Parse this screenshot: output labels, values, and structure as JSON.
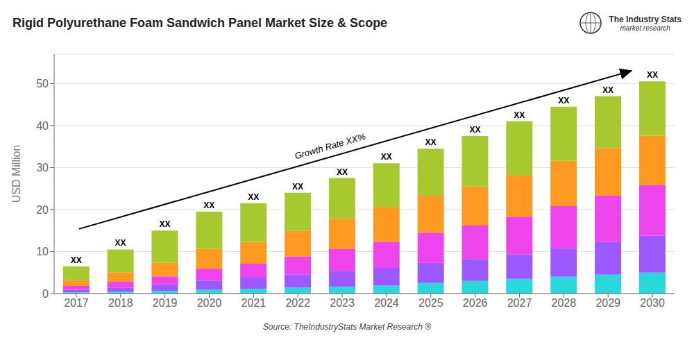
{
  "chart_data": {
    "type": "bar",
    "title": "Rigid Polyurethane Foam Sandwich Panel Market Size & Scope",
    "ylabel": "USD Million",
    "source": "Source: TheIndustryStats Market Research ®",
    "categories": [
      2017,
      2018,
      2019,
      2020,
      2021,
      2022,
      2023,
      2024,
      2025,
      2026,
      2027,
      2028,
      2029,
      2030
    ],
    "series": [
      {
        "color": "#29D9D9",
        "values": [
          0.3,
          0.4,
          0.6,
          0.9,
          1.1,
          1.4,
          1.6,
          1.9,
          2.5,
          3.0,
          3.5,
          4.0,
          4.5,
          5.0
        ]
      },
      {
        "color": "#9B59FF",
        "values": [
          0.6,
          1.0,
          1.5,
          2.2,
          2.7,
          3.2,
          3.8,
          4.2,
          4.8,
          5.2,
          5.8,
          6.8,
          7.8,
          8.8
        ]
      },
      {
        "color": "#EE44EE",
        "values": [
          0.9,
          1.4,
          2.0,
          2.8,
          3.3,
          4.2,
          5.2,
          6.2,
          7.2,
          8.0,
          9.0,
          10.0,
          11.0,
          12.0
        ]
      },
      {
        "color": "#FF9922",
        "values": [
          1.4,
          2.3,
          3.3,
          4.7,
          5.2,
          6.2,
          7.2,
          8.2,
          8.8,
          9.3,
          9.8,
          10.8,
          11.3,
          11.8
        ]
      },
      {
        "color": "#A8C830",
        "values": [
          3.3,
          5.4,
          7.6,
          8.9,
          9.2,
          9.0,
          9.7,
          10.5,
          11.2,
          12.0,
          12.9,
          12.9,
          12.4,
          12.9
        ]
      }
    ],
    "stacked": true,
    "ylim": [
      0,
      57
    ],
    "yticks": [
      0,
      10,
      20,
      30,
      40,
      50
    ],
    "grid": true,
    "annotations": [
      {
        "text": "XX",
        "x": 2017
      },
      {
        "text": "XX",
        "x": 2018
      },
      {
        "text": "XX",
        "x": 2019
      },
      {
        "text": "XX",
        "x": 2020
      },
      {
        "text": "XX",
        "x": 2021
      },
      {
        "text": "XX",
        "x": 2022
      },
      {
        "text": "XX",
        "x": 2023
      },
      {
        "text": "XX",
        "x": 2024
      },
      {
        "text": "XX",
        "x": 2025
      },
      {
        "text": "XX",
        "x": 2026
      },
      {
        "text": "XX",
        "x": 2027
      },
      {
        "text": "XX",
        "x": 2028
      },
      {
        "text": "XX",
        "x": 2029
      },
      {
        "text": "XX",
        "x": 2030
      },
      {
        "text": "Growth Rate XX%"
      },
      {
        "text": "The Industry Stats"
      },
      {
        "text": "market research"
      }
    ]
  }
}
